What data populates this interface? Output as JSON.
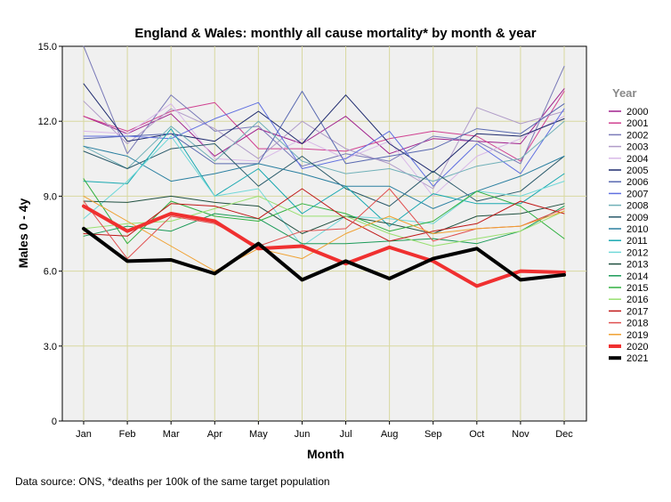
{
  "chart_data": {
    "type": "line",
    "title": "England & Wales: monthly all cause mortality* by month & year",
    "xlabel": "Month",
    "ylabel": "Males 0 - 4y",
    "legend_title": "Year",
    "legend_position": "right",
    "grid": true,
    "ylim": [
      0,
      15
    ],
    "yticks": [
      "0",
      "3.0",
      "6.0",
      "9.0",
      "12.0",
      "15.0"
    ],
    "categories": [
      "Jan",
      "Feb",
      "Mar",
      "Apr",
      "May",
      "Jun",
      "Jul",
      "Aug",
      "Sep",
      "Oct",
      "Nov",
      "Dec"
    ],
    "series": [
      {
        "name": "2000",
        "color": "#a0208c",
        "width": 1,
        "values": [
          12.2,
          11.5,
          12.3,
          10.6,
          11.7,
          11.1,
          12.2,
          10.7,
          11.3,
          11.2,
          11.1,
          13.3
        ]
      },
      {
        "name": "2001",
        "color": "#d04090",
        "width": 1,
        "values": [
          12.2,
          11.6,
          12.4,
          12.75,
          10.9,
          10.9,
          10.8,
          11.3,
          11.6,
          11.4,
          10.4,
          13.2
        ]
      },
      {
        "name": "2002",
        "color": "#7a7ab8",
        "width": 1,
        "values": [
          15.0,
          10.7,
          13.05,
          11.6,
          11.8,
          10.2,
          10.7,
          10.4,
          11.4,
          11.2,
          10.3,
          14.2
        ]
      },
      {
        "name": "2003",
        "color": "#b09cc8",
        "width": 1,
        "values": [
          12.8,
          11.1,
          12.5,
          11.7,
          10.5,
          12.0,
          10.9,
          10.3,
          9.3,
          12.55,
          11.9,
          12.4
        ]
      },
      {
        "name": "2004",
        "color": "#d8b8e8",
        "width": 1,
        "values": [
          11.6,
          11.5,
          12.7,
          10.5,
          10.4,
          11.3,
          10.5,
          11.2,
          9.0,
          10.6,
          11.3,
          12.2
        ]
      },
      {
        "name": "2005",
        "color": "#1e2a6e",
        "width": 1,
        "values": [
          13.5,
          11.2,
          11.5,
          11.2,
          12.4,
          11.1,
          13.05,
          11.1,
          9.95,
          11.5,
          11.4,
          12.1
        ]
      },
      {
        "name": "2006",
        "color": "#5868b0",
        "width": 1,
        "values": [
          11.3,
          11.4,
          11.5,
          10.3,
          10.3,
          13.2,
          10.3,
          10.6,
          10.9,
          11.7,
          11.5,
          12.7
        ]
      },
      {
        "name": "2007",
        "color": "#6070e0",
        "width": 1,
        "values": [
          11.4,
          11.4,
          11.3,
          12.1,
          12.75,
          10.1,
          10.5,
          11.6,
          9.4,
          11.1,
          9.9,
          12.5
        ]
      },
      {
        "name": "2008",
        "color": "#70b0b8",
        "width": 1,
        "values": [
          11.0,
          10.1,
          11.8,
          10.4,
          12.0,
          10.4,
          9.9,
          10.1,
          9.6,
          10.2,
          10.5,
          12.0
        ]
      },
      {
        "name": "2009",
        "color": "#2a5a6a",
        "width": 1,
        "values": [
          10.8,
          10.1,
          10.9,
          11.1,
          9.4,
          10.6,
          9.3,
          8.6,
          10.0,
          8.8,
          9.2,
          10.6
        ]
      },
      {
        "name": "2010",
        "color": "#2a7fa0",
        "width": 1,
        "values": [
          11.0,
          10.6,
          9.6,
          9.9,
          10.3,
          9.9,
          9.4,
          9.4,
          8.5,
          9.2,
          9.8,
          10.6
        ]
      },
      {
        "name": "2011",
        "color": "#18a8b0",
        "width": 1,
        "values": [
          9.6,
          9.5,
          11.7,
          9.0,
          10.1,
          8.3,
          9.4,
          7.8,
          9.1,
          8.7,
          8.7,
          9.9
        ]
      },
      {
        "name": "2012",
        "color": "#70d8d8",
        "width": 1,
        "values": [
          8.1,
          9.6,
          11.4,
          9.0,
          9.3,
          7.0,
          8.2,
          8.1,
          7.9,
          9.2,
          9.0,
          9.6
        ]
      },
      {
        "name": "2013",
        "color": "#205040",
        "width": 1,
        "values": [
          8.8,
          8.75,
          9.0,
          8.75,
          8.6,
          7.5,
          8.2,
          7.9,
          7.5,
          8.2,
          8.3,
          8.7
        ]
      },
      {
        "name": "2014",
        "color": "#1a9a58",
        "width": 1,
        "values": [
          7.4,
          7.8,
          7.6,
          8.3,
          8.1,
          7.1,
          7.1,
          7.2,
          7.3,
          7.1,
          7.6,
          8.6
        ]
      },
      {
        "name": "2015",
        "color": "#30b040",
        "width": 1,
        "values": [
          9.7,
          7.1,
          8.8,
          8.2,
          8.0,
          8.7,
          8.3,
          7.6,
          8.0,
          9.2,
          8.6,
          7.3
        ]
      },
      {
        "name": "2016",
        "color": "#98e070",
        "width": 1,
        "values": [
          7.7,
          7.9,
          8.0,
          8.5,
          9.0,
          8.2,
          8.2,
          7.5,
          7.0,
          7.3,
          7.6,
          8.4
        ]
      },
      {
        "name": "2017",
        "color": "#c01818",
        "width": 1,
        "values": [
          7.5,
          7.4,
          8.7,
          8.6,
          8.1,
          9.3,
          8.1,
          7.2,
          7.6,
          7.9,
          8.8,
          8.3
        ]
      },
      {
        "name": "2018",
        "color": "#e05050",
        "width": 1,
        "values": [
          8.8,
          6.5,
          8.2,
          7.9,
          7.0,
          7.6,
          7.7,
          9.3,
          7.2,
          7.7,
          7.8,
          8.5
        ]
      },
      {
        "name": "2019",
        "color": "#f0a030",
        "width": 1,
        "values": [
          9.0,
          8.0,
          7.0,
          6.0,
          6.9,
          6.5,
          7.5,
          8.2,
          7.5,
          7.7,
          7.8,
          8.4
        ]
      },
      {
        "name": "2020",
        "color": "#f03030",
        "width": 4,
        "values": [
          8.6,
          7.6,
          8.3,
          8.0,
          6.9,
          7.0,
          6.3,
          6.95,
          6.4,
          5.4,
          6.0,
          5.95
        ]
      },
      {
        "name": "2021",
        "color": "#000000",
        "width": 4,
        "values": [
          7.7,
          6.4,
          6.45,
          5.9,
          7.1,
          5.65,
          6.4,
          5.7,
          6.5,
          6.9,
          5.65,
          5.85
        ]
      }
    ]
  },
  "footnote": "Data source: ONS, *deaths per 100k of the same target population"
}
